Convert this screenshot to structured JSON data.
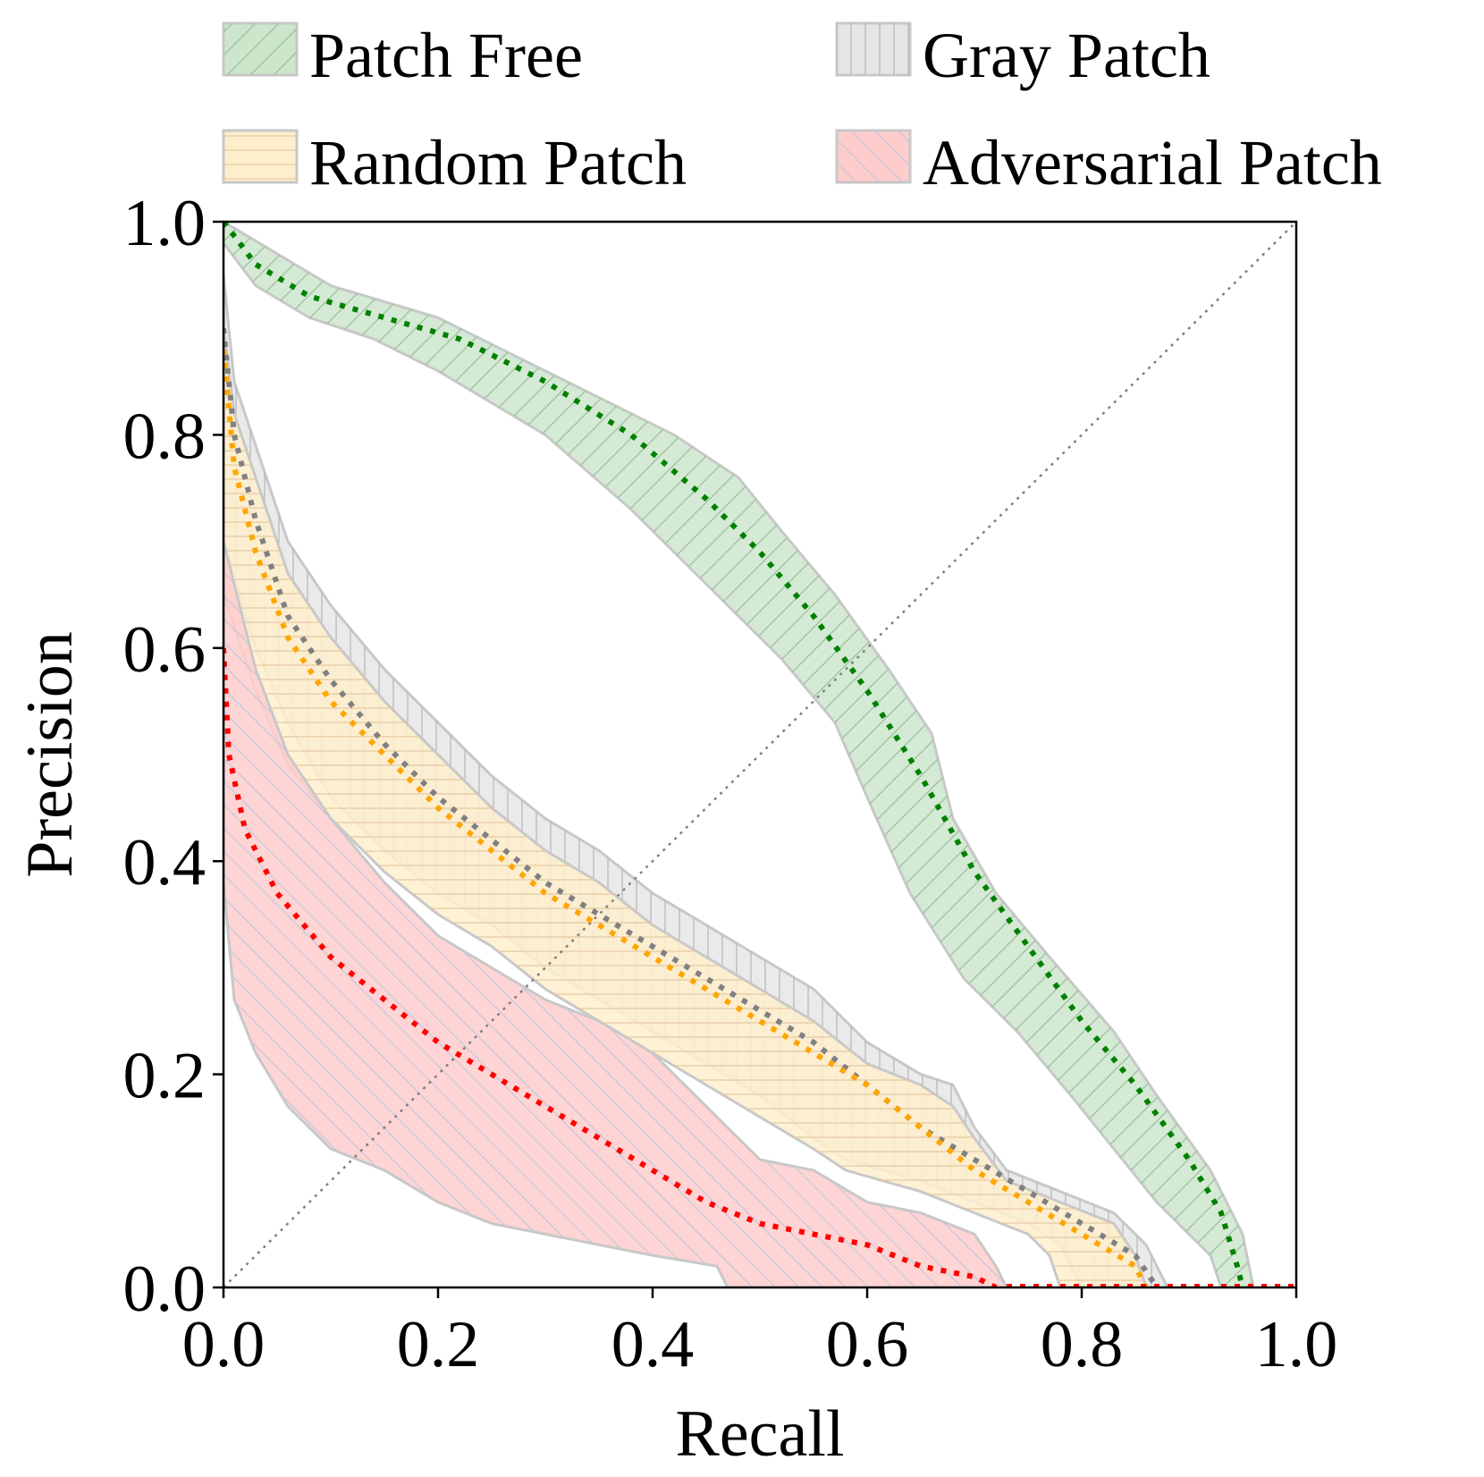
{
  "chart_data": {
    "type": "area",
    "title": "",
    "xlabel": "Recall",
    "ylabel": "Precision",
    "xlim": [
      0.0,
      1.0
    ],
    "ylim": [
      0.0,
      1.0
    ],
    "xticks": [
      "0.0",
      "0.2",
      "0.4",
      "0.6",
      "0.8",
      "1.0"
    ],
    "yticks": [
      "0.0",
      "0.2",
      "0.4",
      "0.6",
      "0.8",
      "1.0"
    ],
    "grid": false,
    "legend_position": "top",
    "series": [
      {
        "name": "Patch Free",
        "fill": "#cce6cc",
        "line_color": "#008000",
        "hatch": "diagonal",
        "mean": [
          [
            0.0,
            1.0
          ],
          [
            0.03,
            0.96
          ],
          [
            0.08,
            0.93
          ],
          [
            0.15,
            0.91
          ],
          [
            0.22,
            0.89
          ],
          [
            0.3,
            0.85
          ],
          [
            0.38,
            0.8
          ],
          [
            0.45,
            0.74
          ],
          [
            0.5,
            0.69
          ],
          [
            0.55,
            0.63
          ],
          [
            0.6,
            0.56
          ],
          [
            0.65,
            0.48
          ],
          [
            0.7,
            0.39
          ],
          [
            0.75,
            0.32
          ],
          [
            0.8,
            0.25
          ],
          [
            0.85,
            0.19
          ],
          [
            0.9,
            0.12
          ],
          [
            0.93,
            0.07
          ],
          [
            0.945,
            0.02
          ],
          [
            0.95,
            0.0
          ]
        ],
        "upper": [
          [
            0.0,
            1.0
          ],
          [
            0.05,
            0.97
          ],
          [
            0.1,
            0.94
          ],
          [
            0.2,
            0.91
          ],
          [
            0.28,
            0.87
          ],
          [
            0.36,
            0.83
          ],
          [
            0.42,
            0.8
          ],
          [
            0.48,
            0.76
          ],
          [
            0.52,
            0.71
          ],
          [
            0.57,
            0.65
          ],
          [
            0.62,
            0.58
          ],
          [
            0.66,
            0.52
          ],
          [
            0.68,
            0.44
          ],
          [
            0.72,
            0.37
          ],
          [
            0.77,
            0.31
          ],
          [
            0.83,
            0.24
          ],
          [
            0.87,
            0.18
          ],
          [
            0.92,
            0.11
          ],
          [
            0.95,
            0.05
          ],
          [
            0.96,
            0.0
          ]
        ],
        "lower": [
          [
            0.0,
            0.98
          ],
          [
            0.03,
            0.94
          ],
          [
            0.08,
            0.91
          ],
          [
            0.14,
            0.89
          ],
          [
            0.2,
            0.86
          ],
          [
            0.3,
            0.8
          ],
          [
            0.38,
            0.73
          ],
          [
            0.45,
            0.66
          ],
          [
            0.52,
            0.59
          ],
          [
            0.57,
            0.53
          ],
          [
            0.6,
            0.46
          ],
          [
            0.64,
            0.37
          ],
          [
            0.69,
            0.29
          ],
          [
            0.74,
            0.24
          ],
          [
            0.79,
            0.18
          ],
          [
            0.83,
            0.13
          ],
          [
            0.87,
            0.08
          ],
          [
            0.92,
            0.03
          ],
          [
            0.93,
            0.0
          ]
        ]
      },
      {
        "name": "Gray Patch",
        "fill": "#e6e6e6",
        "line_color": "#808080",
        "hatch": "vertical",
        "mean": [
          [
            0.0,
            0.9
          ],
          [
            0.01,
            0.8
          ],
          [
            0.03,
            0.72
          ],
          [
            0.06,
            0.63
          ],
          [
            0.1,
            0.57
          ],
          [
            0.15,
            0.51
          ],
          [
            0.2,
            0.46
          ],
          [
            0.25,
            0.42
          ],
          [
            0.3,
            0.38
          ],
          [
            0.35,
            0.35
          ],
          [
            0.4,
            0.32
          ],
          [
            0.45,
            0.29
          ],
          [
            0.5,
            0.26
          ],
          [
            0.55,
            0.23
          ],
          [
            0.6,
            0.19
          ],
          [
            0.65,
            0.15
          ],
          [
            0.7,
            0.12
          ],
          [
            0.75,
            0.09
          ],
          [
            0.8,
            0.06
          ],
          [
            0.85,
            0.03
          ],
          [
            0.87,
            0.0
          ]
        ],
        "upper": [
          [
            0.0,
            0.95
          ],
          [
            0.01,
            0.85
          ],
          [
            0.03,
            0.79
          ],
          [
            0.06,
            0.7
          ],
          [
            0.1,
            0.64
          ],
          [
            0.15,
            0.58
          ],
          [
            0.2,
            0.53
          ],
          [
            0.25,
            0.48
          ],
          [
            0.3,
            0.44
          ],
          [
            0.35,
            0.41
          ],
          [
            0.4,
            0.37
          ],
          [
            0.45,
            0.34
          ],
          [
            0.5,
            0.31
          ],
          [
            0.55,
            0.28
          ],
          [
            0.6,
            0.23
          ],
          [
            0.65,
            0.2
          ],
          [
            0.68,
            0.19
          ],
          [
            0.7,
            0.15
          ],
          [
            0.73,
            0.11
          ],
          [
            0.78,
            0.09
          ],
          [
            0.83,
            0.07
          ],
          [
            0.86,
            0.04
          ],
          [
            0.88,
            0.0
          ]
        ],
        "lower": [
          [
            0.0,
            0.7
          ],
          [
            0.03,
            0.6
          ],
          [
            0.06,
            0.53
          ],
          [
            0.1,
            0.46
          ],
          [
            0.15,
            0.41
          ],
          [
            0.2,
            0.37
          ],
          [
            0.25,
            0.34
          ],
          [
            0.3,
            0.3
          ],
          [
            0.35,
            0.27
          ],
          [
            0.4,
            0.24
          ],
          [
            0.45,
            0.21
          ],
          [
            0.5,
            0.18
          ],
          [
            0.55,
            0.14
          ],
          [
            0.58,
            0.12
          ],
          [
            0.65,
            0.1
          ],
          [
            0.7,
            0.08
          ],
          [
            0.75,
            0.06
          ],
          [
            0.78,
            0.04
          ],
          [
            0.8,
            0.0
          ]
        ]
      },
      {
        "name": "Random Patch",
        "fill": "#ffeecc",
        "line_color": "#ffa500",
        "hatch": "horizontal",
        "mean": [
          [
            0.0,
            0.88
          ],
          [
            0.01,
            0.77
          ],
          [
            0.03,
            0.69
          ],
          [
            0.06,
            0.61
          ],
          [
            0.1,
            0.55
          ],
          [
            0.15,
            0.5
          ],
          [
            0.2,
            0.45
          ],
          [
            0.25,
            0.41
          ],
          [
            0.3,
            0.37
          ],
          [
            0.35,
            0.34
          ],
          [
            0.4,
            0.31
          ],
          [
            0.45,
            0.28
          ],
          [
            0.5,
            0.25
          ],
          [
            0.55,
            0.22
          ],
          [
            0.6,
            0.19
          ],
          [
            0.65,
            0.15
          ],
          [
            0.7,
            0.11
          ],
          [
            0.75,
            0.08
          ],
          [
            0.8,
            0.05
          ],
          [
            0.85,
            0.02
          ],
          [
            0.86,
            0.0
          ]
        ],
        "upper": [
          [
            0.0,
            0.9
          ],
          [
            0.01,
            0.82
          ],
          [
            0.03,
            0.76
          ],
          [
            0.06,
            0.67
          ],
          [
            0.1,
            0.61
          ],
          [
            0.15,
            0.55
          ],
          [
            0.2,
            0.5
          ],
          [
            0.25,
            0.45
          ],
          [
            0.3,
            0.41
          ],
          [
            0.35,
            0.38
          ],
          [
            0.4,
            0.34
          ],
          [
            0.45,
            0.31
          ],
          [
            0.5,
            0.28
          ],
          [
            0.55,
            0.25
          ],
          [
            0.6,
            0.21
          ],
          [
            0.65,
            0.19
          ],
          [
            0.68,
            0.17
          ],
          [
            0.7,
            0.14
          ],
          [
            0.73,
            0.1
          ],
          [
            0.78,
            0.08
          ],
          [
            0.83,
            0.06
          ],
          [
            0.85,
            0.03
          ],
          [
            0.86,
            0.0
          ]
        ],
        "lower": [
          [
            0.0,
            0.65
          ],
          [
            0.03,
            0.56
          ],
          [
            0.06,
            0.49
          ],
          [
            0.1,
            0.44
          ],
          [
            0.15,
            0.39
          ],
          [
            0.2,
            0.35
          ],
          [
            0.25,
            0.32
          ],
          [
            0.3,
            0.28
          ],
          [
            0.35,
            0.25
          ],
          [
            0.4,
            0.22
          ],
          [
            0.45,
            0.19
          ],
          [
            0.5,
            0.16
          ],
          [
            0.55,
            0.13
          ],
          [
            0.58,
            0.11
          ],
          [
            0.65,
            0.09
          ],
          [
            0.7,
            0.07
          ],
          [
            0.75,
            0.05
          ],
          [
            0.77,
            0.03
          ],
          [
            0.78,
            0.0
          ]
        ]
      },
      {
        "name": "Adversarial Patch",
        "fill": "#ffcccc",
        "line_color": "#ff0000",
        "hatch": "back-diagonal",
        "mean": [
          [
            0.0,
            0.6
          ],
          [
            0.005,
            0.5
          ],
          [
            0.02,
            0.43
          ],
          [
            0.05,
            0.37
          ],
          [
            0.1,
            0.31
          ],
          [
            0.15,
            0.27
          ],
          [
            0.2,
            0.23
          ],
          [
            0.25,
            0.2
          ],
          [
            0.3,
            0.17
          ],
          [
            0.35,
            0.14
          ],
          [
            0.4,
            0.11
          ],
          [
            0.45,
            0.08
          ],
          [
            0.5,
            0.06
          ],
          [
            0.55,
            0.05
          ],
          [
            0.6,
            0.04
          ],
          [
            0.65,
            0.02
          ],
          [
            0.7,
            0.01
          ],
          [
            0.72,
            0.0
          ]
        ],
        "upper": [
          [
            0.0,
            0.7
          ],
          [
            0.03,
            0.58
          ],
          [
            0.06,
            0.5
          ],
          [
            0.1,
            0.44
          ],
          [
            0.15,
            0.38
          ],
          [
            0.2,
            0.33
          ],
          [
            0.25,
            0.3
          ],
          [
            0.3,
            0.27
          ],
          [
            0.35,
            0.25
          ],
          [
            0.4,
            0.22
          ],
          [
            0.45,
            0.17
          ],
          [
            0.5,
            0.12
          ],
          [
            0.55,
            0.11
          ],
          [
            0.6,
            0.08
          ],
          [
            0.65,
            0.07
          ],
          [
            0.7,
            0.05
          ],
          [
            0.72,
            0.02
          ],
          [
            0.73,
            0.0
          ]
        ],
        "lower": [
          [
            0.0,
            0.38
          ],
          [
            0.01,
            0.27
          ],
          [
            0.03,
            0.22
          ],
          [
            0.06,
            0.17
          ],
          [
            0.1,
            0.13
          ],
          [
            0.15,
            0.11
          ],
          [
            0.2,
            0.08
          ],
          [
            0.25,
            0.06
          ],
          [
            0.3,
            0.05
          ],
          [
            0.35,
            0.04
          ],
          [
            0.4,
            0.03
          ],
          [
            0.46,
            0.02
          ],
          [
            0.47,
            0.0
          ]
        ]
      }
    ]
  }
}
